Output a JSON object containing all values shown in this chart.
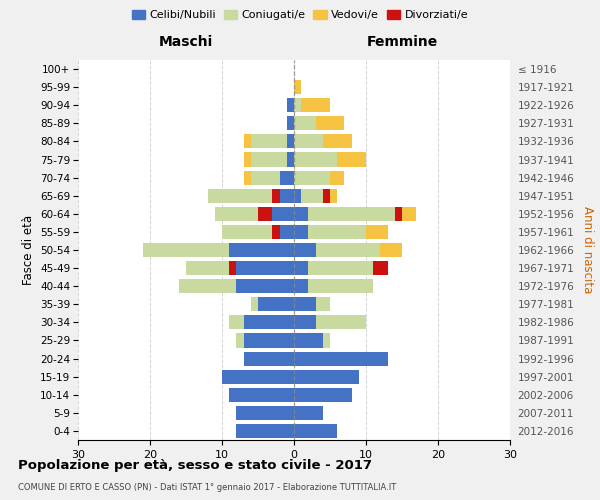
{
  "age_groups": [
    "0-4",
    "5-9",
    "10-14",
    "15-19",
    "20-24",
    "25-29",
    "30-34",
    "35-39",
    "40-44",
    "45-49",
    "50-54",
    "55-59",
    "60-64",
    "65-69",
    "70-74",
    "75-79",
    "80-84",
    "85-89",
    "90-94",
    "95-99",
    "100+"
  ],
  "birth_years": [
    "2012-2016",
    "2007-2011",
    "2002-2006",
    "1997-2001",
    "1992-1996",
    "1987-1991",
    "1982-1986",
    "1977-1981",
    "1972-1976",
    "1967-1971",
    "1962-1966",
    "1957-1961",
    "1952-1956",
    "1947-1951",
    "1942-1946",
    "1937-1941",
    "1932-1936",
    "1927-1931",
    "1922-1926",
    "1917-1921",
    "≤ 1916"
  ],
  "males": {
    "celibi": [
      8,
      8,
      9,
      10,
      7,
      7,
      7,
      5,
      8,
      8,
      9,
      2,
      3,
      2,
      2,
      1,
      1,
      1,
      1,
      0,
      0
    ],
    "coniugati": [
      0,
      0,
      0,
      0,
      0,
      1,
      2,
      1,
      8,
      7,
      12,
      8,
      8,
      10,
      4,
      5,
      5,
      0,
      0,
      0,
      0
    ],
    "vedovi": [
      0,
      0,
      0,
      0,
      0,
      0,
      0,
      0,
      0,
      0,
      0,
      0,
      0,
      0,
      1,
      1,
      1,
      0,
      0,
      0,
      0
    ],
    "divorziati": [
      0,
      0,
      0,
      0,
      0,
      0,
      0,
      0,
      0,
      1,
      0,
      1,
      2,
      1,
      0,
      0,
      0,
      0,
      0,
      0,
      0
    ]
  },
  "females": {
    "nubili": [
      6,
      4,
      8,
      9,
      13,
      4,
      3,
      3,
      2,
      2,
      3,
      2,
      2,
      1,
      0,
      0,
      0,
      0,
      0,
      0,
      0
    ],
    "coniugate": [
      0,
      0,
      0,
      0,
      0,
      1,
      7,
      2,
      9,
      9,
      9,
      8,
      12,
      3,
      5,
      6,
      4,
      3,
      1,
      0,
      0
    ],
    "vedove": [
      0,
      0,
      0,
      0,
      0,
      0,
      0,
      0,
      0,
      1,
      3,
      3,
      3,
      2,
      2,
      4,
      4,
      4,
      4,
      1,
      0
    ],
    "divorziate": [
      0,
      0,
      0,
      0,
      0,
      0,
      0,
      0,
      0,
      2,
      0,
      0,
      1,
      1,
      0,
      0,
      0,
      0,
      0,
      0,
      0
    ]
  },
  "colors": {
    "celibi": "#4472c4",
    "coniugati": "#c8daa0",
    "vedovi": "#f5c242",
    "divorziati": "#cc1111"
  },
  "xlim": 30,
  "title": "Popolazione per età, sesso e stato civile - 2017",
  "subtitle": "COMUNE DI ERTO E CASSO (PN) - Dati ISTAT 1° gennaio 2017 - Elaborazione TUTTITALIA.IT",
  "ylabel_left": "Fasce di età",
  "ylabel_right": "Anni di nascita",
  "label_maschi": "Maschi",
  "label_femmine": "Femmine",
  "bg_color": "#f0f0f0",
  "plot_bg": "#ffffff",
  "legend_labels": [
    "Celibi/Nubili",
    "Coniugati/e",
    "Vedovi/e",
    "Divorziati/e"
  ]
}
